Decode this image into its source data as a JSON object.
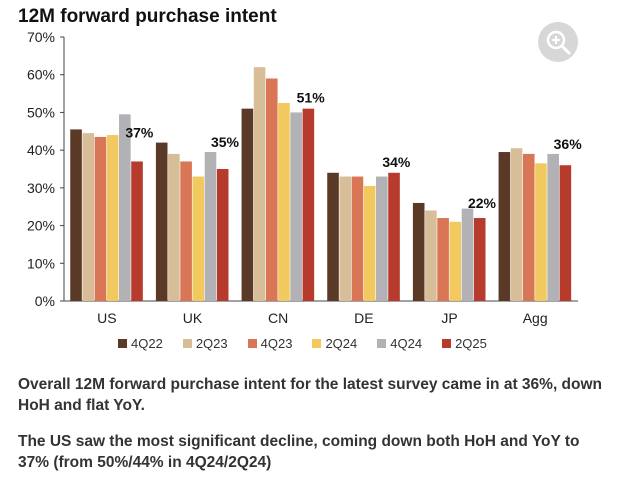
{
  "chart_data": {
    "type": "bar",
    "title": "12M forward purchase intent",
    "categories": [
      "US",
      "UK",
      "CN",
      "DE",
      "JP",
      "Agg"
    ],
    "series": [
      {
        "name": "4Q22",
        "color": "#5a3a26",
        "values": [
          45.5,
          42,
          51,
          34,
          26,
          39.5
        ]
      },
      {
        "name": "2Q23",
        "color": "#d7bd98",
        "values": [
          44.5,
          39,
          62,
          33,
          24,
          40.5
        ]
      },
      {
        "name": "4Q23",
        "color": "#d97655",
        "values": [
          43.5,
          37,
          59,
          33,
          22,
          39
        ]
      },
      {
        "name": "2Q24",
        "color": "#f2c95e",
        "values": [
          44,
          33,
          52.5,
          30.5,
          21,
          36.5
        ]
      },
      {
        "name": "4Q24",
        "color": "#b2b2b6",
        "values": [
          49.5,
          39.5,
          50,
          33,
          24.5,
          39
        ]
      },
      {
        "name": "2Q25",
        "color": "#b73b2d",
        "values": [
          37,
          35,
          51,
          34,
          22,
          36
        ]
      }
    ],
    "data_labels": [
      "37%",
      "35%",
      "51%",
      "34%",
      "22%",
      "36%"
    ],
    "yticks": [
      "0%",
      "10%",
      "20%",
      "30%",
      "40%",
      "50%",
      "60%",
      "70%"
    ],
    "ylim": [
      0,
      70
    ],
    "xlabel": "",
    "ylabel": "",
    "grid": false,
    "legend_position": "bottom"
  },
  "captions": {
    "line1": "Overall 12M forward purchase intent for the latest survey came in at 36%, down HoH and flat YoY.",
    "line2": "The US saw the most significant decline, coming down both HoH and YoY to 37% (from 50%/44% in 4Q24/2Q24)"
  },
  "zoom_icon": "zoom-in-icon"
}
